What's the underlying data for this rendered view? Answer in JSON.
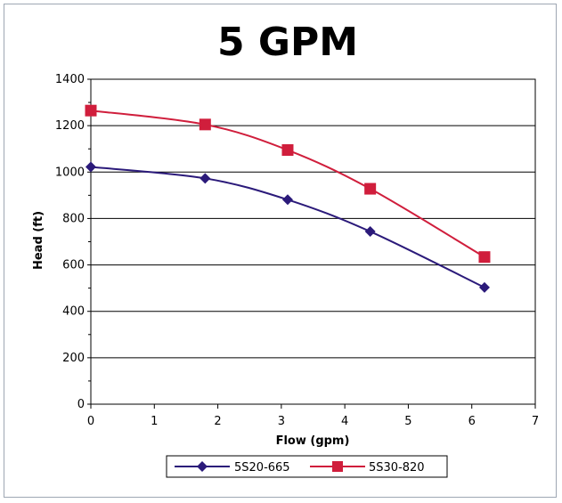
{
  "chart_data": {
    "type": "line",
    "title": "5 GPM",
    "xlabel": "Flow (gpm)",
    "ylabel": "Head (ft)",
    "xlim": [
      0,
      7
    ],
    "ylim": [
      0,
      1400
    ],
    "x_ticks": [
      "0",
      "1",
      "2",
      "3",
      "4",
      "5",
      "6",
      "7"
    ],
    "y_ticks": [
      "0",
      "200",
      "400",
      "600",
      "800",
      "1000",
      "1200",
      "1400"
    ],
    "grid": "horizontal",
    "legend_position": "bottom",
    "series": [
      {
        "name": "5S20-665",
        "color": "#2b1a7a",
        "marker": "diamond",
        "points": [
          [
            0,
            1022
          ],
          [
            1.8,
            973
          ],
          [
            3.1,
            881
          ],
          [
            4.4,
            744
          ],
          [
            6.2,
            503
          ]
        ]
      },
      {
        "name": "5S30-820",
        "color": "#d01e3c",
        "marker": "square",
        "points": [
          [
            0,
            1265
          ],
          [
            1.8,
            1205
          ],
          [
            3.1,
            1095
          ],
          [
            4.4,
            928
          ],
          [
            6.2,
            634
          ]
        ]
      }
    ]
  }
}
